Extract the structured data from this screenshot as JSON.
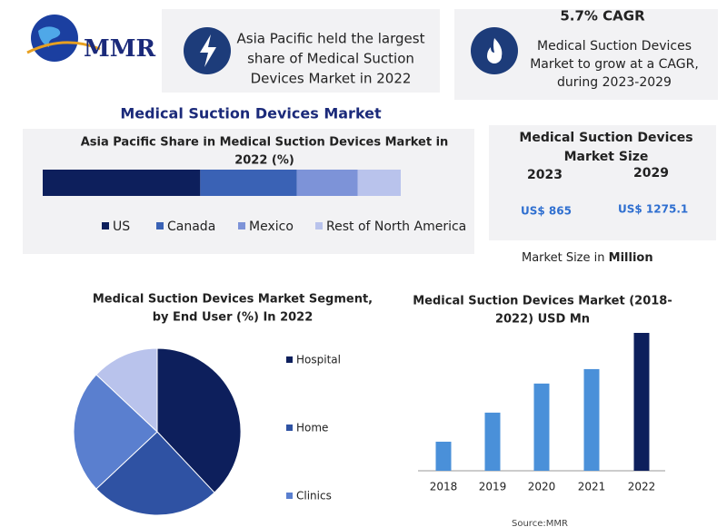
{
  "logo": "MMR",
  "highlights": [
    {
      "lines": [
        "Asia Pacific held the largest",
        "share of Medical Suction",
        "Devices Market in 2022"
      ]
    },
    {
      "title": "5.7% CAGR",
      "lines": [
        "Medical Suction Devices",
        "Market to grow at a CAGR,",
        "during 2023-2029"
      ]
    }
  ],
  "main_title": "Medical Suction Devices Market",
  "market_size": {
    "title": [
      "Medical Suction Devices",
      "Market Size"
    ],
    "years": [
      "2023",
      "2029"
    ],
    "values": [
      "US$ 865",
      "US$ 1275.1"
    ],
    "note": "Market Size in",
    "note_unit": "Million"
  },
  "source": "Source:MMR",
  "chart_data": [
    {
      "type": "stacked-bar",
      "title": [
        "Asia Pacific Share in Medical Suction Devices Market in",
        "2022 (%)"
      ],
      "series": [
        {
          "name": "US",
          "color": "#0d1f5c",
          "values": [
            44
          ]
        },
        {
          "name": "Canada",
          "color": "#3a62b5",
          "values": [
            27
          ]
        },
        {
          "name": "Mexico",
          "color": "#7d93d8",
          "values": [
            17
          ]
        },
        {
          "name": "Rest of North America",
          "color": "#b9c3ec",
          "values": [
            12
          ]
        }
      ]
    },
    {
      "type": "pie",
      "title": [
        "Medical Suction Devices Market Segment,",
        "by End User (%) In 2022"
      ],
      "categories": [
        "Hospital",
        "Home",
        "Clinics",
        null
      ],
      "values": [
        38,
        25,
        24,
        13
      ],
      "colors": [
        "#0d1f5c",
        "#2f52a3",
        "#5a7fcf",
        "#b9c3ec"
      ]
    },
    {
      "type": "bar",
      "title": [
        "Medical Suction Devices Market (2018-",
        "2022) USD Mn"
      ],
      "categories": [
        "2018",
        "2019",
        "2020",
        "2021",
        "2022"
      ],
      "values": [
        175,
        350,
        525,
        612,
        830
      ],
      "colors": [
        "#4a90d9",
        "#4a90d9",
        "#4a90d9",
        "#4a90d9",
        "#0d1f5c"
      ]
    }
  ]
}
